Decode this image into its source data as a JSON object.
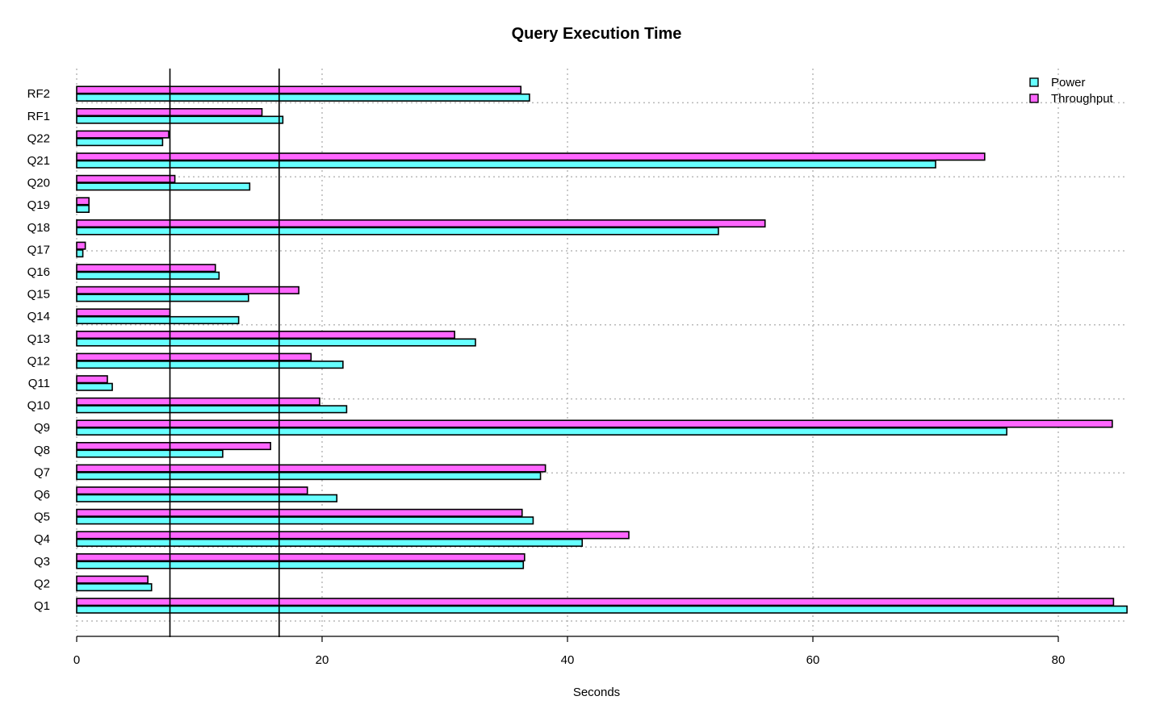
{
  "chart_data": {
    "type": "bar",
    "orientation": "horizontal",
    "title": "Query Execution Time",
    "xlabel": "Seconds",
    "ylabel": "",
    "xlim": [
      0,
      85.6
    ],
    "xticks": [
      0,
      20,
      40,
      60,
      80
    ],
    "grid": true,
    "legend_position": "top-right",
    "categories": [
      "Q1",
      "Q2",
      "Q3",
      "Q4",
      "Q5",
      "Q6",
      "Q7",
      "Q8",
      "Q9",
      "Q10",
      "Q11",
      "Q12",
      "Q13",
      "Q14",
      "Q15",
      "Q16",
      "Q17",
      "Q18",
      "Q19",
      "Q20",
      "Q21",
      "Q22",
      "RF1",
      "RF2"
    ],
    "series": [
      {
        "name": "Power",
        "color": "#66ffff",
        "values": [
          85.6,
          6.1,
          36.4,
          41.2,
          37.2,
          21.2,
          37.8,
          11.9,
          75.8,
          22.0,
          2.9,
          21.7,
          32.5,
          13.2,
          14.0,
          11.6,
          0.5,
          52.3,
          1.0,
          14.1,
          70.0,
          7.0,
          16.8,
          36.9
        ]
      },
      {
        "name": "Throughput",
        "color": "#ff66ff",
        "values": [
          84.5,
          5.8,
          36.5,
          45.0,
          36.3,
          18.8,
          38.2,
          15.8,
          84.4,
          19.8,
          2.5,
          19.1,
          30.8,
          7.6,
          18.1,
          11.3,
          0.7,
          56.1,
          1.0,
          8.0,
          74.0,
          7.5,
          15.1,
          36.2
        ]
      }
    ],
    "reference_lines": [
      7.6,
      16.5
    ]
  }
}
